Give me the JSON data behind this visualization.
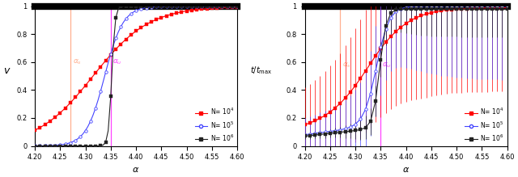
{
  "alpha_s": 4.27,
  "alpha_u": 4.35,
  "xlim": [
    4.2,
    4.6
  ],
  "ylim": [
    0,
    1
  ],
  "xticks": [
    4.2,
    4.25,
    4.3,
    4.35,
    4.4,
    4.45,
    4.5,
    4.55,
    4.6
  ],
  "yticks": [
    0,
    0.2,
    0.4,
    0.6,
    0.8,
    1
  ],
  "col_N4": "#ff0000",
  "col_N5": "#4444ff",
  "col_N6": "#222222",
  "alpha_s_color": "#ffb090",
  "alpha_u_color": "#ff44ff"
}
